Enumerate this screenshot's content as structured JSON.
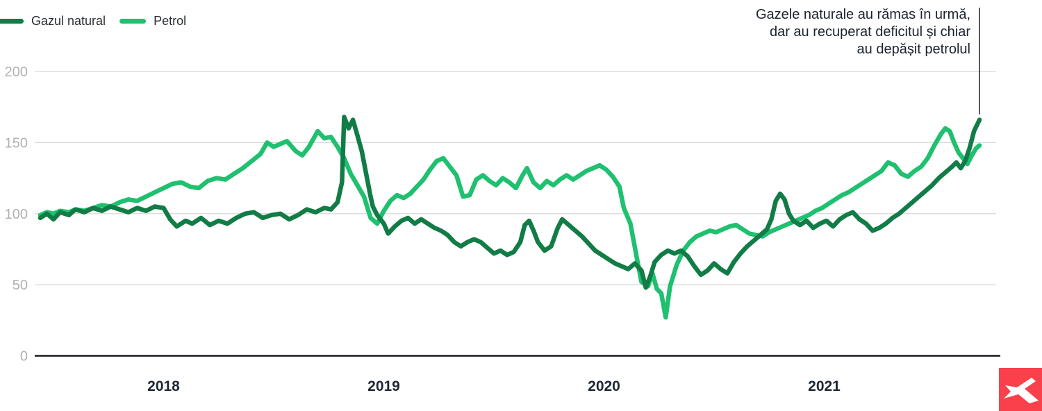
{
  "chart_data": {
    "type": "line",
    "x_unit": "year",
    "xlim": [
      2017.42,
      2021.72
    ],
    "ylim": [
      0,
      200
    ],
    "y_ticks": [
      0,
      50,
      100,
      150,
      200
    ],
    "x_ticks": [
      "2018",
      "2019",
      "2020",
      "2021"
    ],
    "grid": true,
    "legend_position": "top-left",
    "annotation_lines": [
      "Gazele naturale au rămas în urmă,",
      "dar au recuperat deficitul și chiar",
      "au depășit petrolul"
    ],
    "series": [
      {
        "name": "Petrol",
        "color": "#1fc06f",
        "points": [
          [
            2017.44,
            99
          ],
          [
            2017.47,
            101
          ],
          [
            2017.5,
            100
          ],
          [
            2017.53,
            102
          ],
          [
            2017.57,
            101
          ],
          [
            2017.6,
            103
          ],
          [
            2017.64,
            102
          ],
          [
            2017.68,
            104
          ],
          [
            2017.72,
            106
          ],
          [
            2017.76,
            105
          ],
          [
            2017.8,
            108
          ],
          [
            2017.84,
            110
          ],
          [
            2017.88,
            109
          ],
          [
            2017.92,
            112
          ],
          [
            2017.96,
            115
          ],
          [
            2018.0,
            118
          ],
          [
            2018.04,
            121
          ],
          [
            2018.08,
            122
          ],
          [
            2018.12,
            119
          ],
          [
            2018.16,
            118
          ],
          [
            2018.2,
            123
          ],
          [
            2018.24,
            125
          ],
          [
            2018.28,
            124
          ],
          [
            2018.32,
            128
          ],
          [
            2018.36,
            132
          ],
          [
            2018.4,
            137
          ],
          [
            2018.44,
            142
          ],
          [
            2018.47,
            150
          ],
          [
            2018.5,
            147
          ],
          [
            2018.53,
            149
          ],
          [
            2018.56,
            151
          ],
          [
            2018.6,
            144
          ],
          [
            2018.63,
            141
          ],
          [
            2018.66,
            147
          ],
          [
            2018.7,
            158
          ],
          [
            2018.73,
            153
          ],
          [
            2018.76,
            154
          ],
          [
            2018.79,
            147
          ],
          [
            2018.82,
            139
          ],
          [
            2018.85,
            128
          ],
          [
            2018.88,
            120
          ],
          [
            2018.91,
            112
          ],
          [
            2018.94,
            97
          ],
          [
            2018.97,
            93
          ],
          [
            2019.0,
            102
          ],
          [
            2019.03,
            109
          ],
          [
            2019.06,
            113
          ],
          [
            2019.09,
            111
          ],
          [
            2019.12,
            114
          ],
          [
            2019.15,
            119
          ],
          [
            2019.18,
            124
          ],
          [
            2019.21,
            131
          ],
          [
            2019.24,
            137
          ],
          [
            2019.27,
            139
          ],
          [
            2019.3,
            133
          ],
          [
            2019.33,
            127
          ],
          [
            2019.36,
            112
          ],
          [
            2019.39,
            113
          ],
          [
            2019.42,
            124
          ],
          [
            2019.45,
            127
          ],
          [
            2019.48,
            123
          ],
          [
            2019.51,
            120
          ],
          [
            2019.54,
            125
          ],
          [
            2019.57,
            122
          ],
          [
            2019.6,
            118
          ],
          [
            2019.63,
            127
          ],
          [
            2019.65,
            132
          ],
          [
            2019.68,
            122
          ],
          [
            2019.71,
            118
          ],
          [
            2019.74,
            123
          ],
          [
            2019.77,
            120
          ],
          [
            2019.8,
            124
          ],
          [
            2019.83,
            127
          ],
          [
            2019.86,
            124
          ],
          [
            2019.89,
            127
          ],
          [
            2019.92,
            130
          ],
          [
            2019.95,
            132
          ],
          [
            2019.98,
            134
          ],
          [
            2020.01,
            131
          ],
          [
            2020.04,
            126
          ],
          [
            2020.07,
            119
          ],
          [
            2020.09,
            104
          ],
          [
            2020.12,
            93
          ],
          [
            2020.15,
            68
          ],
          [
            2020.17,
            52
          ],
          [
            2020.2,
            49
          ],
          [
            2020.22,
            58
          ],
          [
            2020.24,
            47
          ],
          [
            2020.26,
            44
          ],
          [
            2020.28,
            27
          ],
          [
            2020.3,
            49
          ],
          [
            2020.33,
            64
          ],
          [
            2020.36,
            74
          ],
          [
            2020.39,
            80
          ],
          [
            2020.42,
            84
          ],
          [
            2020.45,
            86
          ],
          [
            2020.48,
            88
          ],
          [
            2020.51,
            87
          ],
          [
            2020.54,
            89
          ],
          [
            2020.57,
            91
          ],
          [
            2020.6,
            92
          ],
          [
            2020.63,
            89
          ],
          [
            2020.66,
            86
          ],
          [
            2020.69,
            85
          ],
          [
            2020.72,
            84
          ],
          [
            2020.75,
            87
          ],
          [
            2020.78,
            89
          ],
          [
            2020.81,
            91
          ],
          [
            2020.84,
            93
          ],
          [
            2020.87,
            95
          ],
          [
            2020.9,
            97
          ],
          [
            2020.93,
            99
          ],
          [
            2020.96,
            102
          ],
          [
            2020.99,
            104
          ],
          [
            2021.02,
            107
          ],
          [
            2021.05,
            110
          ],
          [
            2021.08,
            113
          ],
          [
            2021.11,
            115
          ],
          [
            2021.14,
            118
          ],
          [
            2021.17,
            121
          ],
          [
            2021.2,
            124
          ],
          [
            2021.23,
            127
          ],
          [
            2021.26,
            130
          ],
          [
            2021.29,
            136
          ],
          [
            2021.32,
            134
          ],
          [
            2021.35,
            128
          ],
          [
            2021.38,
            126
          ],
          [
            2021.41,
            130
          ],
          [
            2021.44,
            133
          ],
          [
            2021.47,
            139
          ],
          [
            2021.5,
            148
          ],
          [
            2021.53,
            156
          ],
          [
            2021.55,
            160
          ],
          [
            2021.57,
            158
          ],
          [
            2021.59,
            150
          ],
          [
            2021.61,
            143
          ],
          [
            2021.63,
            139
          ],
          [
            2021.65,
            135
          ],
          [
            2021.67,
            141
          ],
          [
            2021.69,
            146
          ],
          [
            2021.705,
            148
          ]
        ]
      },
      {
        "name": "Gazul natural",
        "color": "#117c46",
        "points": [
          [
            2017.44,
            97
          ],
          [
            2017.47,
            100
          ],
          [
            2017.5,
            96
          ],
          [
            2017.53,
            101
          ],
          [
            2017.57,
            99
          ],
          [
            2017.6,
            103
          ],
          [
            2017.64,
            101
          ],
          [
            2017.68,
            104
          ],
          [
            2017.72,
            102
          ],
          [
            2017.76,
            105
          ],
          [
            2017.8,
            103
          ],
          [
            2017.84,
            101
          ],
          [
            2017.88,
            104
          ],
          [
            2017.92,
            102
          ],
          [
            2017.96,
            105
          ],
          [
            2018.0,
            104
          ],
          [
            2018.03,
            96
          ],
          [
            2018.06,
            91
          ],
          [
            2018.1,
            95
          ],
          [
            2018.13,
            93
          ],
          [
            2018.17,
            97
          ],
          [
            2018.21,
            92
          ],
          [
            2018.25,
            95
          ],
          [
            2018.29,
            93
          ],
          [
            2018.33,
            97
          ],
          [
            2018.37,
            100
          ],
          [
            2018.41,
            101
          ],
          [
            2018.45,
            97
          ],
          [
            2018.49,
            99
          ],
          [
            2018.53,
            100
          ],
          [
            2018.57,
            96
          ],
          [
            2018.61,
            99
          ],
          [
            2018.65,
            103
          ],
          [
            2018.69,
            101
          ],
          [
            2018.73,
            104
          ],
          [
            2018.76,
            103
          ],
          [
            2018.79,
            108
          ],
          [
            2018.81,
            122
          ],
          [
            2018.82,
            168
          ],
          [
            2018.84,
            160
          ],
          [
            2018.86,
            166
          ],
          [
            2018.88,
            155
          ],
          [
            2018.9,
            144
          ],
          [
            2018.92,
            128
          ],
          [
            2018.94,
            112
          ],
          [
            2018.95,
            105
          ],
          [
            2018.97,
            99
          ],
          [
            2019.0,
            93
          ],
          [
            2019.02,
            86
          ],
          [
            2019.05,
            91
          ],
          [
            2019.08,
            95
          ],
          [
            2019.11,
            97
          ],
          [
            2019.14,
            93
          ],
          [
            2019.17,
            96
          ],
          [
            2019.2,
            93
          ],
          [
            2019.23,
            90
          ],
          [
            2019.26,
            88
          ],
          [
            2019.29,
            85
          ],
          [
            2019.32,
            80
          ],
          [
            2019.35,
            77
          ],
          [
            2019.38,
            80
          ],
          [
            2019.41,
            82
          ],
          [
            2019.44,
            80
          ],
          [
            2019.47,
            76
          ],
          [
            2019.5,
            72
          ],
          [
            2019.53,
            74
          ],
          [
            2019.56,
            71
          ],
          [
            2019.59,
            73
          ],
          [
            2019.62,
            80
          ],
          [
            2019.64,
            92
          ],
          [
            2019.66,
            95
          ],
          [
            2019.68,
            88
          ],
          [
            2019.7,
            80
          ],
          [
            2019.73,
            74
          ],
          [
            2019.76,
            77
          ],
          [
            2019.79,
            90
          ],
          [
            2019.81,
            96
          ],
          [
            2019.84,
            92
          ],
          [
            2019.87,
            88
          ],
          [
            2019.9,
            84
          ],
          [
            2019.93,
            79
          ],
          [
            2019.96,
            74
          ],
          [
            2019.99,
            71
          ],
          [
            2020.02,
            68
          ],
          [
            2020.05,
            65
          ],
          [
            2020.08,
            63
          ],
          [
            2020.11,
            61
          ],
          [
            2020.14,
            65
          ],
          [
            2020.17,
            60
          ],
          [
            2020.19,
            48
          ],
          [
            2020.21,
            56
          ],
          [
            2020.23,
            66
          ],
          [
            2020.26,
            71
          ],
          [
            2020.29,
            74
          ],
          [
            2020.32,
            72
          ],
          [
            2020.35,
            74
          ],
          [
            2020.38,
            70
          ],
          [
            2020.41,
            63
          ],
          [
            2020.44,
            57
          ],
          [
            2020.47,
            60
          ],
          [
            2020.5,
            65
          ],
          [
            2020.53,
            61
          ],
          [
            2020.56,
            58
          ],
          [
            2020.59,
            66
          ],
          [
            2020.62,
            72
          ],
          [
            2020.65,
            77
          ],
          [
            2020.68,
            81
          ],
          [
            2020.71,
            85
          ],
          [
            2020.74,
            89
          ],
          [
            2020.76,
            96
          ],
          [
            2020.78,
            109
          ],
          [
            2020.8,
            114
          ],
          [
            2020.82,
            110
          ],
          [
            2020.84,
            100
          ],
          [
            2020.86,
            95
          ],
          [
            2020.89,
            92
          ],
          [
            2020.92,
            95
          ],
          [
            2020.95,
            90
          ],
          [
            2020.98,
            93
          ],
          [
            2021.01,
            95
          ],
          [
            2021.04,
            91
          ],
          [
            2021.07,
            96
          ],
          [
            2021.1,
            99
          ],
          [
            2021.13,
            101
          ],
          [
            2021.16,
            96
          ],
          [
            2021.19,
            93
          ],
          [
            2021.22,
            88
          ],
          [
            2021.25,
            90
          ],
          [
            2021.28,
            93
          ],
          [
            2021.31,
            97
          ],
          [
            2021.34,
            100
          ],
          [
            2021.37,
            104
          ],
          [
            2021.4,
            108
          ],
          [
            2021.43,
            112
          ],
          [
            2021.46,
            116
          ],
          [
            2021.49,
            120
          ],
          [
            2021.52,
            125
          ],
          [
            2021.55,
            129
          ],
          [
            2021.58,
            133
          ],
          [
            2021.6,
            136
          ],
          [
            2021.62,
            132
          ],
          [
            2021.64,
            137
          ],
          [
            2021.66,
            146
          ],
          [
            2021.68,
            158
          ],
          [
            2021.705,
            166
          ]
        ]
      }
    ]
  },
  "legend": {
    "items": [
      {
        "label": "Gazul natural",
        "color": "#117c46"
      },
      {
        "label": "Petrol",
        "color": "#1fc06f"
      }
    ]
  },
  "colors": {
    "grid": "#d8d8d8",
    "axis": "#16181d",
    "y_tick_label": "#b1b1b1",
    "x_tick_label": "#1d2633",
    "pointer_line": "#2a2f36",
    "logo_background": "#fa414b",
    "logo_mark": "#ffffff"
  }
}
